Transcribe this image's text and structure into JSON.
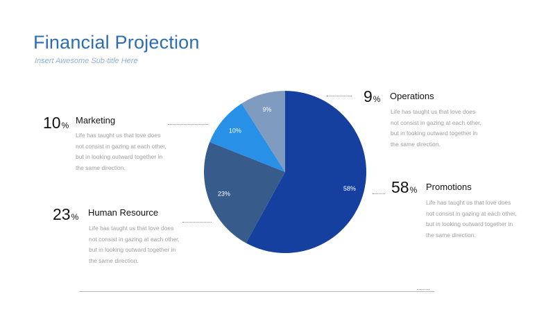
{
  "slide": {
    "title": "Financial Projection",
    "subtitle": "Insert Awesome Sub-title Here"
  },
  "blocks": {
    "marketing": {
      "value": "10",
      "symbol": "%",
      "label": "Marketing",
      "text": "Life has taught us that love does not consist in gazing at each other, but in looking outward together in the same direction."
    },
    "human_resource": {
      "value": "23",
      "symbol": "%",
      "label": "Human Resource",
      "text": "Life has taught us that love does not consist in gazing at each other, but in looking outward together in the same direction."
    },
    "operations": {
      "value": "9",
      "symbol": "%",
      "label": "Operations",
      "text": "Life has taught us that love does not consist in gazing at each other, but in looking outward together in the same direction."
    },
    "promotions": {
      "value": "58",
      "symbol": "%",
      "label": "Promotions",
      "text": "Life has taught us that love does not consist in gazing at each other, but in looking outward together in the same direction."
    }
  },
  "chart_data": {
    "type": "pie",
    "title": "",
    "start_angle_deg": 0,
    "direction": "clockwise",
    "slices": [
      {
        "name": "Promotions",
        "value": 58,
        "label": "58%",
        "color": "#1540a0"
      },
      {
        "name": "Human Resource",
        "value": 23,
        "label": "23%",
        "color": "#375c8c"
      },
      {
        "name": "Marketing",
        "value": 10,
        "label": "10%",
        "color": "#2890e6"
      },
      {
        "name": "Operations",
        "value": 9,
        "label": "9%",
        "color": "#7f9cc0"
      }
    ],
    "legend": "none"
  }
}
